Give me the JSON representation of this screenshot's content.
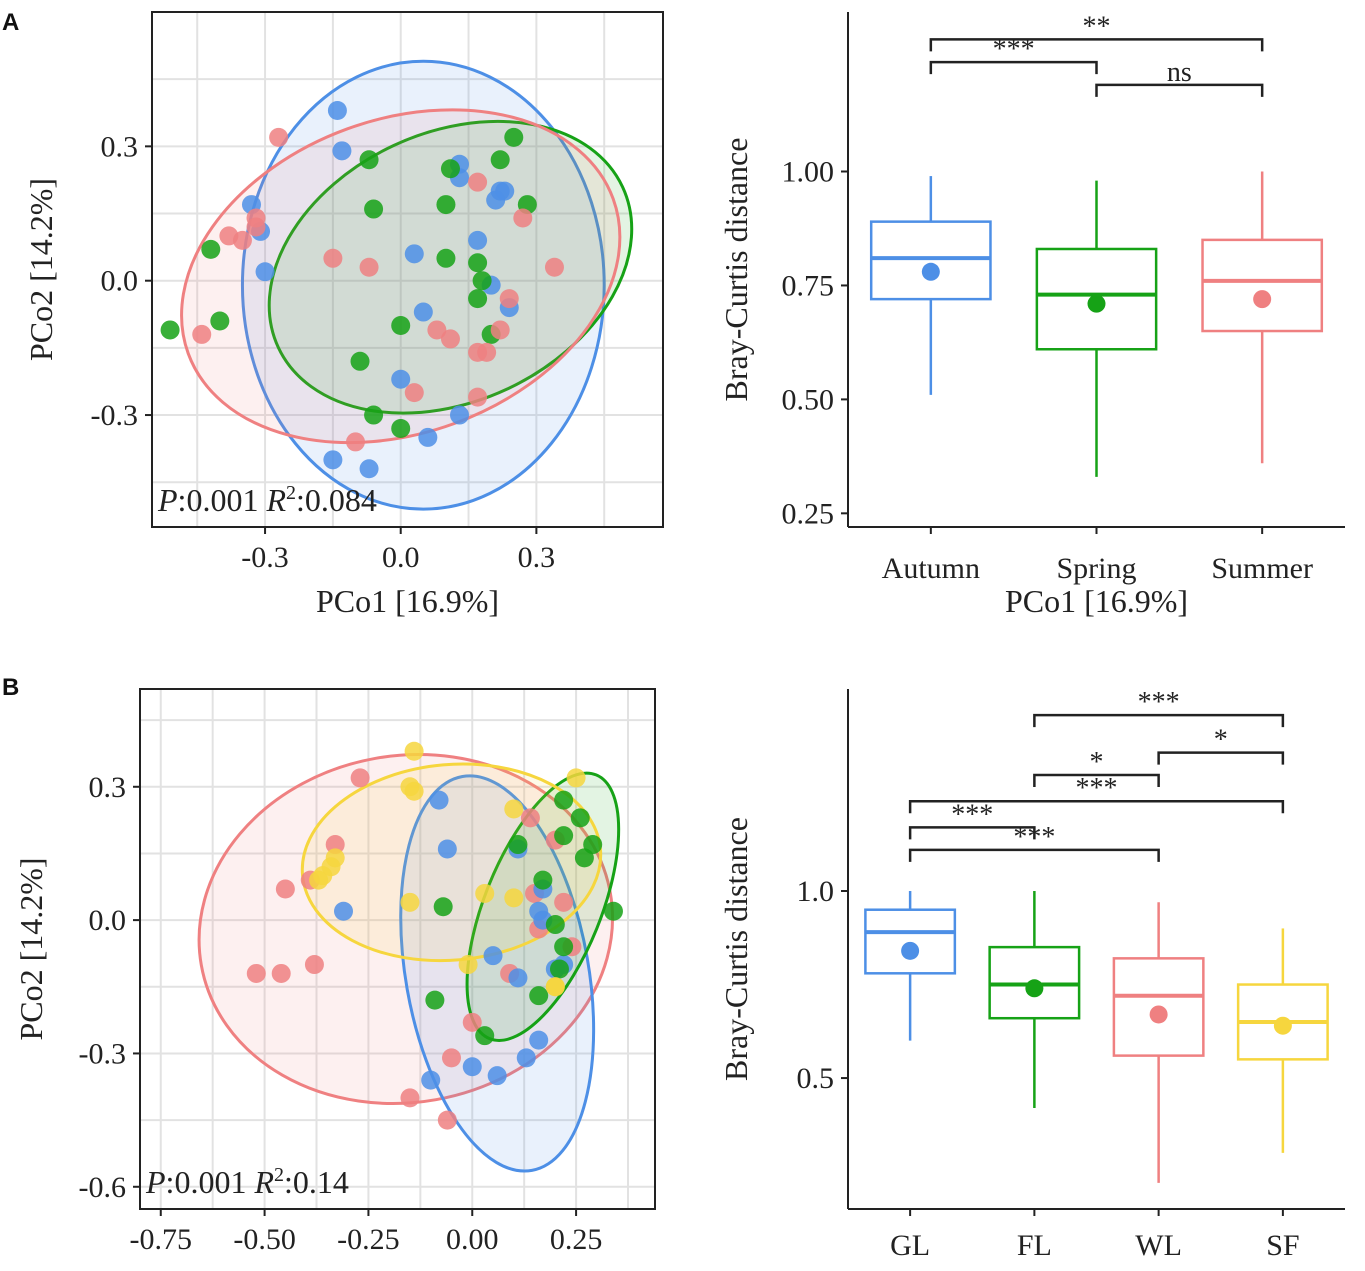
{
  "figure": {
    "panel_labels": [
      "A",
      "B"
    ]
  },
  "colors": {
    "blue": "#4d8fe6",
    "green": "#16a216",
    "red": "#ef8081",
    "yellow": "#f6d63e",
    "grid": "#e2e2e2",
    "axis": "#222222"
  },
  "chart_data": [
    {
      "id": "A_pcoa",
      "type": "scatter",
      "xlabel": "PCo1 [16.9%]",
      "ylabel": "PCo2 [14.2%]",
      "xlim": [
        -0.55,
        0.58
      ],
      "ylim": [
        -0.55,
        0.6
      ],
      "xticks": [
        -0.3,
        0.0,
        0.3
      ],
      "xtick_labels": [
        "-0.3",
        "0.0",
        "0.3"
      ],
      "yticks": [
        -0.3,
        0.0,
        0.3
      ],
      "ytick_labels": [
        "-0.3",
        "0.0",
        "0.3"
      ],
      "grid": true,
      "stats": {
        "p_prefix": "P",
        "p_value": ":0.001 ",
        "r_prefix": "R",
        "r_exp": "2",
        "r_value": ":0.084"
      },
      "series": [
        {
          "name": "Autumn",
          "color": "blue",
          "ellipse": {
            "cx": 0.05,
            "cy": -0.01,
            "rx": 0.4,
            "ry": 0.5,
            "angle": 0
          },
          "points": [
            [
              -0.14,
              0.38
            ],
            [
              -0.13,
              0.29
            ],
            [
              -0.33,
              0.17
            ],
            [
              -0.31,
              0.11
            ],
            [
              -0.3,
              0.02
            ],
            [
              0.13,
              0.26
            ],
            [
              0.13,
              0.23
            ],
            [
              0.22,
              0.2
            ],
            [
              0.23,
              0.2
            ],
            [
              0.21,
              0.18
            ],
            [
              0.03,
              0.06
            ],
            [
              0.17,
              0.09
            ],
            [
              0.2,
              -0.01
            ],
            [
              0.24,
              -0.06
            ],
            [
              0.05,
              -0.07
            ],
            [
              0.0,
              -0.22
            ],
            [
              0.13,
              -0.3
            ],
            [
              0.06,
              -0.35
            ],
            [
              -0.15,
              -0.4
            ],
            [
              -0.07,
              -0.42
            ]
          ]
        },
        {
          "name": "Spring",
          "color": "green",
          "ellipse": {
            "cx": 0.11,
            "cy": 0.03,
            "rx": 0.42,
            "ry": 0.3,
            "angle": -25
          },
          "points": [
            [
              0.25,
              0.32
            ],
            [
              0.22,
              0.27
            ],
            [
              -0.07,
              0.27
            ],
            [
              0.11,
              0.25
            ],
            [
              0.28,
              0.17
            ],
            [
              0.1,
              0.17
            ],
            [
              -0.06,
              0.16
            ],
            [
              -0.42,
              0.07
            ],
            [
              0.1,
              0.05
            ],
            [
              0.17,
              0.04
            ],
            [
              0.18,
              0.0
            ],
            [
              0.17,
              -0.04
            ],
            [
              0.0,
              -0.1
            ],
            [
              -0.4,
              -0.09
            ],
            [
              -0.51,
              -0.11
            ],
            [
              0.2,
              -0.12
            ],
            [
              -0.09,
              -0.18
            ],
            [
              -0.06,
              -0.3
            ],
            [
              0.0,
              -0.33
            ]
          ]
        },
        {
          "name": "Summer",
          "color": "red",
          "ellipse": {
            "cx": 0.0,
            "cy": 0.01,
            "rx": 0.5,
            "ry": 0.35,
            "angle": -20
          },
          "points": [
            [
              -0.27,
              0.32
            ],
            [
              0.17,
              0.22
            ],
            [
              0.27,
              0.14
            ],
            [
              -0.32,
              0.14
            ],
            [
              -0.32,
              0.12
            ],
            [
              -0.38,
              0.1
            ],
            [
              -0.35,
              0.09
            ],
            [
              -0.15,
              0.05
            ],
            [
              -0.07,
              0.03
            ],
            [
              0.34,
              0.03
            ],
            [
              0.24,
              -0.04
            ],
            [
              0.22,
              -0.11
            ],
            [
              0.08,
              -0.11
            ],
            [
              0.11,
              -0.13
            ],
            [
              -0.44,
              -0.12
            ],
            [
              0.17,
              -0.16
            ],
            [
              0.19,
              -0.16
            ],
            [
              0.03,
              -0.25
            ],
            [
              0.17,
              -0.26
            ],
            [
              -0.1,
              -0.36
            ]
          ]
        }
      ]
    },
    {
      "id": "A_box",
      "type": "box",
      "xlabel": "PCo1 [16.9%]",
      "ylabel": "Bray-Curtis distance",
      "ylim": [
        0.22,
        1.35
      ],
      "yticks": [
        0.25,
        0.5,
        0.75,
        1.0
      ],
      "ytick_labels": [
        "0.25",
        "0.50",
        "0.75",
        "1.00"
      ],
      "categories": [
        "Autumn",
        "Spring",
        "Summer"
      ],
      "colors": [
        "blue",
        "green",
        "red"
      ],
      "boxes": [
        {
          "min": 0.51,
          "q1": 0.72,
          "median": 0.81,
          "q3": 0.89,
          "max": 0.99,
          "mean": 0.78
        },
        {
          "min": 0.33,
          "q1": 0.61,
          "median": 0.73,
          "q3": 0.83,
          "max": 0.98,
          "mean": 0.71
        },
        {
          "min": 0.36,
          "q1": 0.65,
          "median": 0.76,
          "q3": 0.85,
          "max": 1.0,
          "mean": 0.72
        }
      ],
      "comparisons": [
        {
          "from": 0,
          "to": 2,
          "y": 1.29,
          "label": "**"
        },
        {
          "from": 0,
          "to": 1,
          "y": 1.24,
          "label": "***"
        },
        {
          "from": 1,
          "to": 2,
          "y": 1.19,
          "label": "ns"
        }
      ]
    },
    {
      "id": "B_pcoa",
      "type": "scatter",
      "xlabel": "",
      "ylabel": "PCo2 [14.2%]",
      "xlim": [
        -0.8,
        0.44
      ],
      "ylim": [
        -0.65,
        0.52
      ],
      "xticks": [
        -0.75,
        -0.5,
        -0.25,
        0.0,
        0.25
      ],
      "xtick_labels": [
        "-0.75",
        "-0.50",
        "-0.25",
        "0.00",
        "0.25"
      ],
      "yticks": [
        -0.6,
        -0.3,
        0.0,
        0.3
      ],
      "ytick_labels": [
        "-0.6",
        "-0.3",
        "0.0",
        "0.3"
      ],
      "grid": true,
      "stats": {
        "p_prefix": "P",
        "p_value": ":0.001 ",
        "r_prefix": "R",
        "r_exp": "2",
        "r_value": ":0.14"
      },
      "series": [
        {
          "name": "WL",
          "color": "red",
          "ellipse": {
            "cx": -0.16,
            "cy": -0.02,
            "rx": 0.5,
            "ry": 0.39,
            "angle": -10
          },
          "points": [
            [
              -0.27,
              0.32
            ],
            [
              -0.33,
              0.17
            ],
            [
              -0.39,
              0.09
            ],
            [
              -0.45,
              0.07
            ],
            [
              -0.38,
              -0.1
            ],
            [
              -0.46,
              -0.12
            ],
            [
              -0.52,
              -0.12
            ],
            [
              0.14,
              0.23
            ],
            [
              0.2,
              0.18
            ],
            [
              0.15,
              0.06
            ],
            [
              0.22,
              0.04
            ],
            [
              0.16,
              -0.02
            ],
            [
              0.24,
              -0.06
            ],
            [
              0.09,
              -0.12
            ],
            [
              0.0,
              -0.23
            ],
            [
              -0.05,
              -0.31
            ],
            [
              -0.06,
              -0.45
            ],
            [
              -0.15,
              -0.4
            ]
          ]
        },
        {
          "name": "GL",
          "color": "blue",
          "ellipse": {
            "cx": 0.06,
            "cy": -0.12,
            "rx": 0.22,
            "ry": 0.45,
            "angle": -10
          },
          "points": [
            [
              -0.08,
              0.27
            ],
            [
              -0.06,
              0.16
            ],
            [
              -0.31,
              0.02
            ],
            [
              0.11,
              0.16
            ],
            [
              0.17,
              0.07
            ],
            [
              0.16,
              0.02
            ],
            [
              0.17,
              0.0
            ],
            [
              0.05,
              -0.08
            ],
            [
              0.11,
              -0.13
            ],
            [
              0.2,
              -0.11
            ],
            [
              0.22,
              -0.1
            ],
            [
              0.16,
              -0.27
            ],
            [
              0.13,
              -0.31
            ],
            [
              0.06,
              -0.35
            ],
            [
              -0.1,
              -0.36
            ],
            [
              0.0,
              -0.33
            ]
          ]
        },
        {
          "name": "FL",
          "color": "green",
          "ellipse": {
            "cx": 0.17,
            "cy": 0.03,
            "rx": 0.14,
            "ry": 0.32,
            "angle": 22
          },
          "points": [
            [
              0.22,
              0.27
            ],
            [
              0.26,
              0.23
            ],
            [
              0.22,
              0.19
            ],
            [
              0.29,
              0.17
            ],
            [
              0.11,
              0.17
            ],
            [
              0.27,
              0.14
            ],
            [
              0.17,
              0.09
            ],
            [
              0.34,
              0.02
            ],
            [
              -0.07,
              0.03
            ],
            [
              0.2,
              -0.01
            ],
            [
              0.22,
              -0.06
            ],
            [
              0.21,
              -0.11
            ],
            [
              0.16,
              -0.17
            ],
            [
              -0.09,
              -0.18
            ],
            [
              0.03,
              -0.26
            ]
          ]
        },
        {
          "name": "SF",
          "color": "yellow",
          "ellipse": {
            "cx": -0.05,
            "cy": 0.13,
            "rx": 0.36,
            "ry": 0.22,
            "angle": -5
          },
          "points": [
            [
              -0.14,
              0.38
            ],
            [
              0.25,
              0.32
            ],
            [
              -0.15,
              0.3
            ],
            [
              -0.14,
              0.29
            ],
            [
              0.1,
              0.25
            ],
            [
              -0.33,
              0.14
            ],
            [
              -0.34,
              0.12
            ],
            [
              -0.36,
              0.1
            ],
            [
              -0.37,
              0.09
            ],
            [
              -0.15,
              0.04
            ],
            [
              0.03,
              0.06
            ],
            [
              0.1,
              0.05
            ],
            [
              -0.01,
              -0.1
            ],
            [
              0.2,
              -0.15
            ],
            [
              0.2,
              -0.15
            ]
          ]
        }
      ]
    },
    {
      "id": "B_box",
      "type": "box",
      "xlabel": "",
      "ylabel": "Bray-Curtis distance",
      "ylim": [
        0.15,
        1.54
      ],
      "yticks": [
        0.5,
        1.0
      ],
      "ytick_labels": [
        "0.5",
        "1.0"
      ],
      "categories": [
        "GL",
        "FL",
        "WL",
        "SF"
      ],
      "colors": [
        "blue",
        "green",
        "red",
        "yellow"
      ],
      "boxes": [
        {
          "min": 0.6,
          "q1": 0.78,
          "median": 0.89,
          "q3": 0.95,
          "max": 1.0,
          "mean": 0.84
        },
        {
          "min": 0.42,
          "q1": 0.66,
          "median": 0.75,
          "q3": 0.85,
          "max": 1.0,
          "mean": 0.74
        },
        {
          "min": 0.22,
          "q1": 0.56,
          "median": 0.72,
          "q3": 0.82,
          "max": 0.97,
          "mean": 0.67
        },
        {
          "min": 0.3,
          "q1": 0.55,
          "median": 0.65,
          "q3": 0.75,
          "max": 0.9,
          "mean": 0.64
        }
      ],
      "comparisons": [
        {
          "from": 1,
          "to": 3,
          "y": 1.47,
          "label": "***"
        },
        {
          "from": 2,
          "to": 3,
          "y": 1.37,
          "label": "*"
        },
        {
          "from": 1,
          "to": 2,
          "y": 1.31,
          "label": "*"
        },
        {
          "from": 0,
          "to": 3,
          "y": 1.24,
          "label": "***"
        },
        {
          "from": 0,
          "to": 1,
          "y": 1.17,
          "label": "***"
        },
        {
          "from": 0,
          "to": 2,
          "y": 1.11,
          "label": "***"
        }
      ]
    }
  ]
}
